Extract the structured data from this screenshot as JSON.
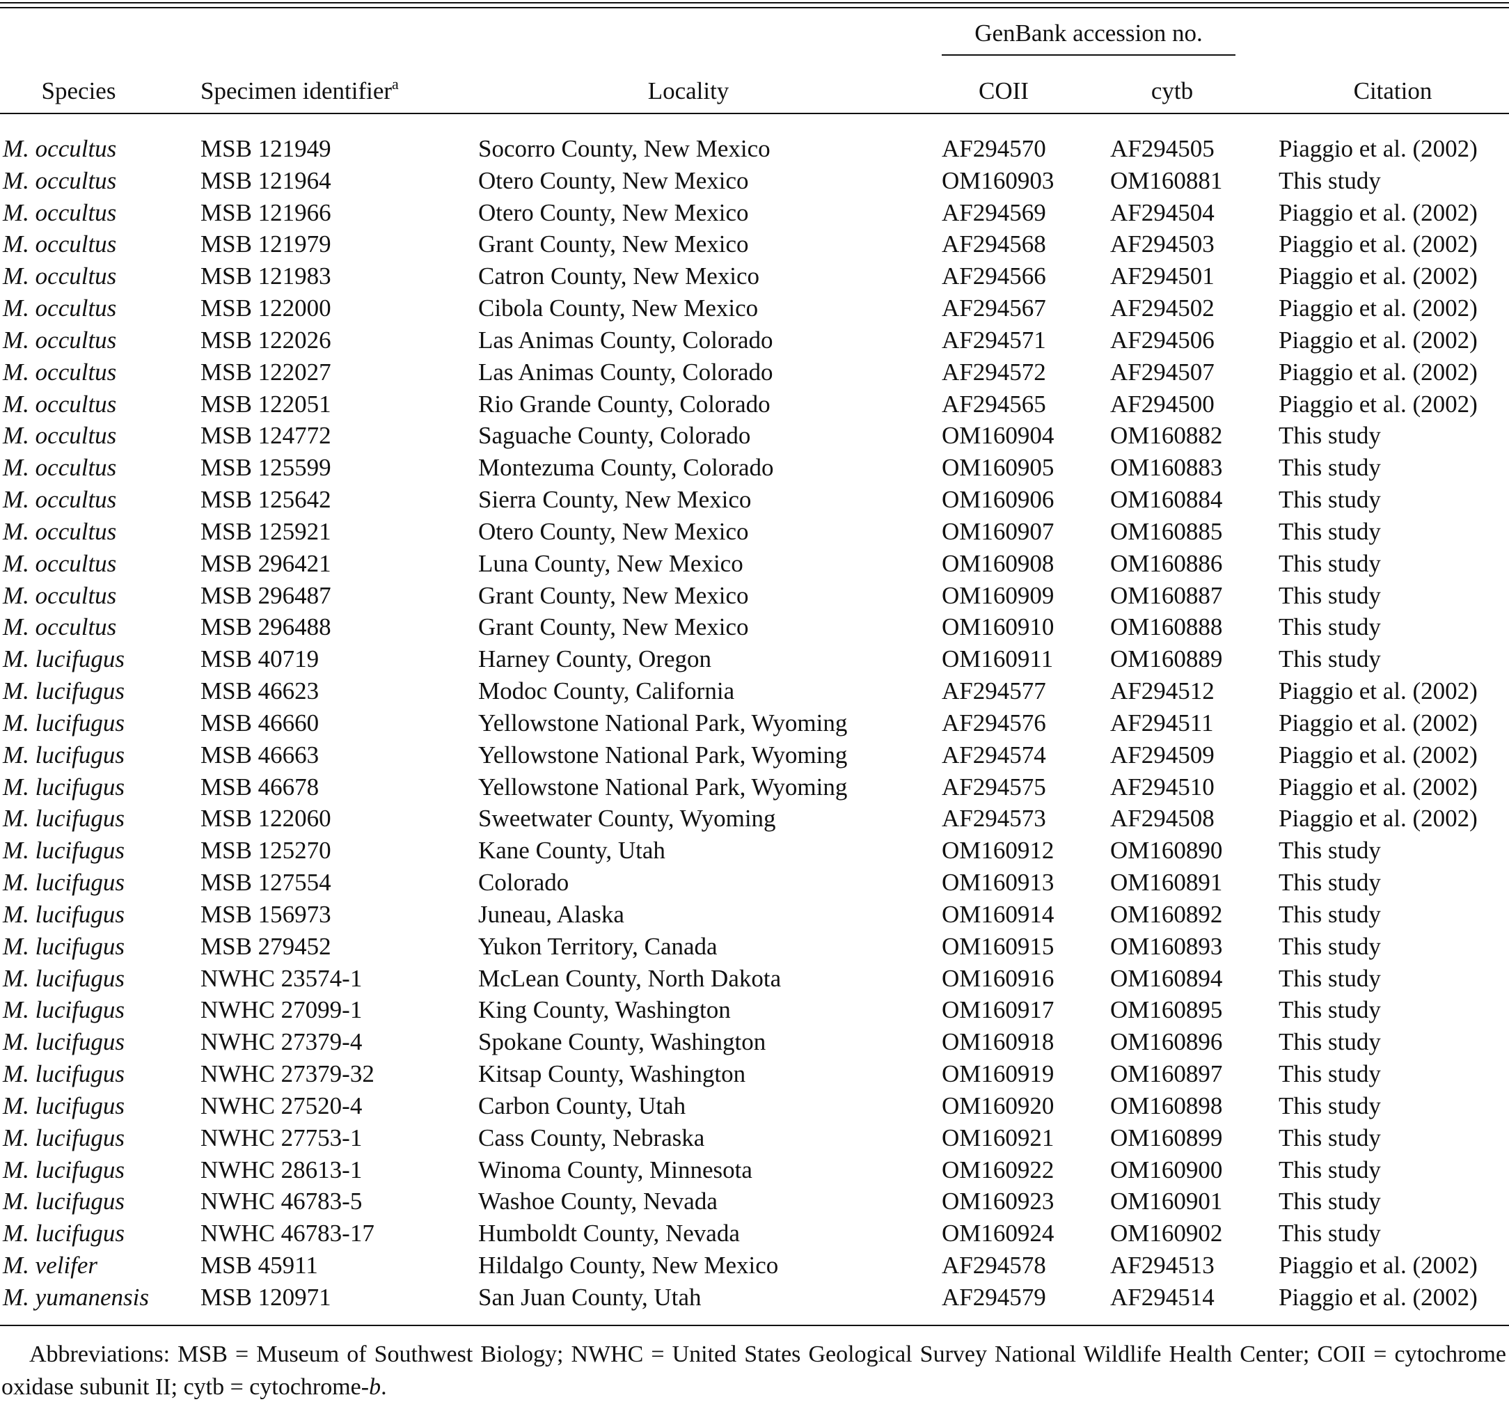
{
  "table": {
    "group_header": "GenBank accession no.",
    "columns": [
      "Species",
      "Specimen identifier",
      "Locality",
      "COII",
      "cytb",
      "Citation"
    ],
    "column_note_marker": "a",
    "rows": [
      [
        "M. occultus",
        "MSB 121949",
        "Socorro County, New Mexico",
        "AF294570",
        "AF294505",
        "Piaggio et al. (2002)"
      ],
      [
        "M. occultus",
        "MSB 121964",
        "Otero County, New Mexico",
        "OM160903",
        "OM160881",
        "This study"
      ],
      [
        "M. occultus",
        "MSB 121966",
        "Otero County, New Mexico",
        "AF294569",
        "AF294504",
        "Piaggio et al. (2002)"
      ],
      [
        "M. occultus",
        "MSB 121979",
        "Grant County, New Mexico",
        "AF294568",
        "AF294503",
        "Piaggio et al. (2002)"
      ],
      [
        "M. occultus",
        "MSB 121983",
        "Catron County, New Mexico",
        "AF294566",
        "AF294501",
        "Piaggio et al. (2002)"
      ],
      [
        "M. occultus",
        "MSB 122000",
        "Cibola County, New Mexico",
        "AF294567",
        "AF294502",
        "Piaggio et al. (2002)"
      ],
      [
        "M. occultus",
        "MSB 122026",
        "Las Animas County, Colorado",
        "AF294571",
        "AF294506",
        "Piaggio et al. (2002)"
      ],
      [
        "M. occultus",
        "MSB 122027",
        "Las Animas County, Colorado",
        "AF294572",
        "AF294507",
        "Piaggio et al. (2002)"
      ],
      [
        "M. occultus",
        "MSB 122051",
        "Rio Grande County, Colorado",
        "AF294565",
        "AF294500",
        "Piaggio et al. (2002)"
      ],
      [
        "M. occultus",
        "MSB 124772",
        "Saguache County, Colorado",
        "OM160904",
        "OM160882",
        "This study"
      ],
      [
        "M. occultus",
        "MSB 125599",
        "Montezuma County, Colorado",
        "OM160905",
        "OM160883",
        "This study"
      ],
      [
        "M. occultus",
        "MSB 125642",
        "Sierra County, New Mexico",
        "OM160906",
        "OM160884",
        "This study"
      ],
      [
        "M. occultus",
        "MSB 125921",
        "Otero County, New Mexico",
        "OM160907",
        "OM160885",
        "This study"
      ],
      [
        "M. occultus",
        "MSB 296421",
        "Luna County, New Mexico",
        "OM160908",
        "OM160886",
        "This study"
      ],
      [
        "M. occultus",
        "MSB 296487",
        "Grant County, New Mexico",
        "OM160909",
        "OM160887",
        "This study"
      ],
      [
        "M. occultus",
        "MSB 296488",
        "Grant County, New Mexico",
        "OM160910",
        "OM160888",
        "This study"
      ],
      [
        "M. lucifugus",
        "MSB 40719",
        "Harney County, Oregon",
        "OM160911",
        "OM160889",
        "This study"
      ],
      [
        "M. lucifugus",
        "MSB 46623",
        "Modoc County, California",
        "AF294577",
        "AF294512",
        "Piaggio et al. (2002)"
      ],
      [
        "M. lucifugus",
        "MSB 46660",
        "Yellowstone National Park, Wyoming",
        "AF294576",
        "AF294511",
        "Piaggio et al. (2002)"
      ],
      [
        "M. lucifugus",
        "MSB 46663",
        "Yellowstone National Park, Wyoming",
        "AF294574",
        "AF294509",
        "Piaggio et al. (2002)"
      ],
      [
        "M. lucifugus",
        "MSB 46678",
        "Yellowstone National Park, Wyoming",
        "AF294575",
        "AF294510",
        "Piaggio et al. (2002)"
      ],
      [
        "M. lucifugus",
        "MSB 122060",
        "Sweetwater County, Wyoming",
        "AF294573",
        "AF294508",
        "Piaggio et al. (2002)"
      ],
      [
        "M. lucifugus",
        "MSB 125270",
        "Kane County, Utah",
        "OM160912",
        "OM160890",
        "This study"
      ],
      [
        "M. lucifugus",
        "MSB 127554",
        "Colorado",
        "OM160913",
        "OM160891",
        "This study"
      ],
      [
        "M. lucifugus",
        "MSB 156973",
        "Juneau, Alaska",
        "OM160914",
        "OM160892",
        "This study"
      ],
      [
        "M. lucifugus",
        "MSB 279452",
        "Yukon Territory, Canada",
        "OM160915",
        "OM160893",
        "This study"
      ],
      [
        "M. lucifugus",
        "NWHC 23574-1",
        "McLean County, North Dakota",
        "OM160916",
        "OM160894",
        "This study"
      ],
      [
        "M. lucifugus",
        "NWHC 27099-1",
        "King County, Washington",
        "OM160917",
        "OM160895",
        "This study"
      ],
      [
        "M. lucifugus",
        "NWHC 27379-4",
        "Spokane County, Washington",
        "OM160918",
        "OM160896",
        "This study"
      ],
      [
        "M. lucifugus",
        "NWHC 27379-32",
        "Kitsap County, Washington",
        "OM160919",
        "OM160897",
        "This study"
      ],
      [
        "M. lucifugus",
        "NWHC 27520-4",
        "Carbon County, Utah",
        "OM160920",
        "OM160898",
        "This study"
      ],
      [
        "M. lucifugus",
        "NWHC 27753-1",
        "Cass County, Nebraska",
        "OM160921",
        "OM160899",
        "This study"
      ],
      [
        "M. lucifugus",
        "NWHC 28613-1",
        "Winoma County, Minnesota",
        "OM160922",
        "OM160900",
        "This study"
      ],
      [
        "M. lucifugus",
        "NWHC 46783-5",
        "Washoe County, Nevada",
        "OM160923",
        "OM160901",
        "This study"
      ],
      [
        "M. lucifugus",
        "NWHC 46783-17",
        "Humboldt County, Nevada",
        "OM160924",
        "OM160902",
        "This study"
      ],
      [
        "M. velifer",
        "MSB 45911",
        "Hildalgo County, New Mexico",
        "AF294578",
        "AF294513",
        "Piaggio et al. (2002)"
      ],
      [
        "M. yumanensis",
        "MSB 120971",
        "San Juan County, Utah",
        "AF294579",
        "AF294514",
        "Piaggio et al. (2002)"
      ]
    ],
    "footnote": {
      "text": "Abbreviations: MSB = Museum of Southwest Biology; NWHC = United States Geological Survey National Wildlife Health Center; COII = cytochrome oxidase subunit II; cytb = cytochrome-",
      "italic": "b",
      "end": "."
    }
  }
}
